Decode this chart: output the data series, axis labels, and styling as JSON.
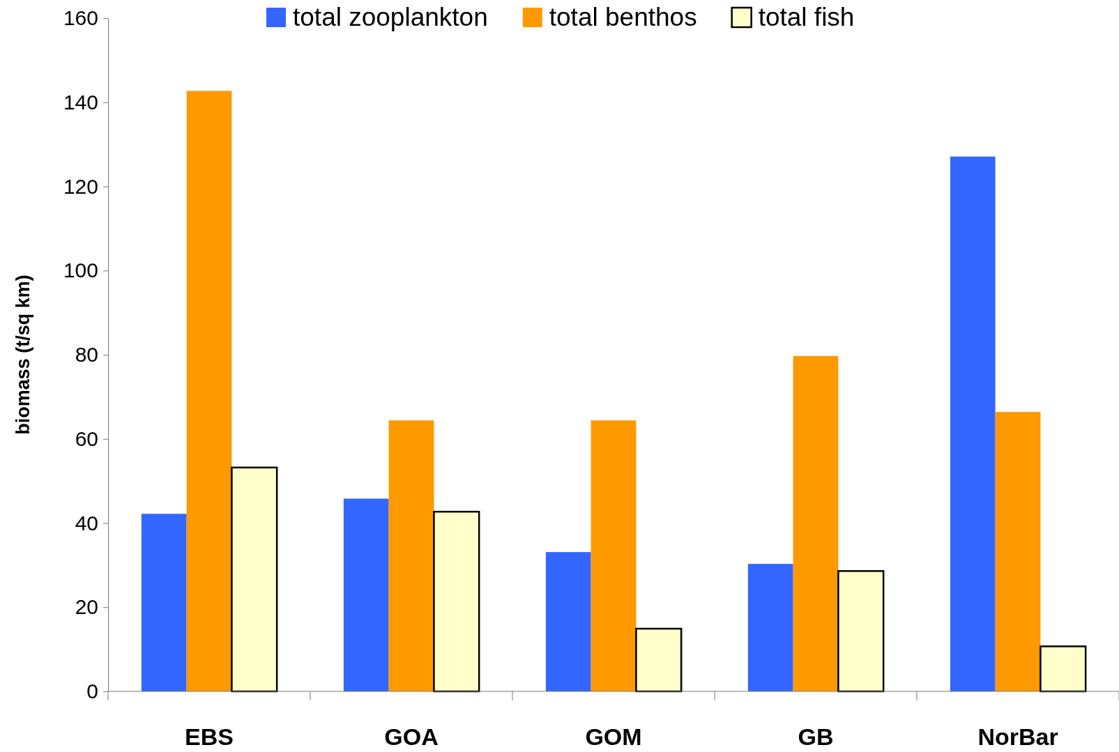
{
  "chart_data": {
    "type": "bar",
    "ylabel": "biomass (t/sq km)",
    "categories": [
      "EBS",
      "GOA",
      "GOM",
      "GB",
      "NorBar"
    ],
    "series": [
      {
        "name": "total zooplankton",
        "color": "#3366ff",
        "values": [
          42.2,
          45.8,
          33.1,
          30.3,
          127.1
        ]
      },
      {
        "name": "total benthos",
        "color": "#ff9900",
        "values": [
          142.7,
          64.4,
          64.4,
          79.7,
          66.4
        ]
      },
      {
        "name": "total fish",
        "color": "#ffffcc",
        "values": [
          53.2,
          42.7,
          14.9,
          28.6,
          10.7
        ]
      }
    ],
    "ylim": [
      0,
      160
    ],
    "yticks": [
      0,
      20,
      40,
      60,
      80,
      100,
      120,
      140,
      160
    ],
    "grid": false,
    "legend": "top"
  }
}
